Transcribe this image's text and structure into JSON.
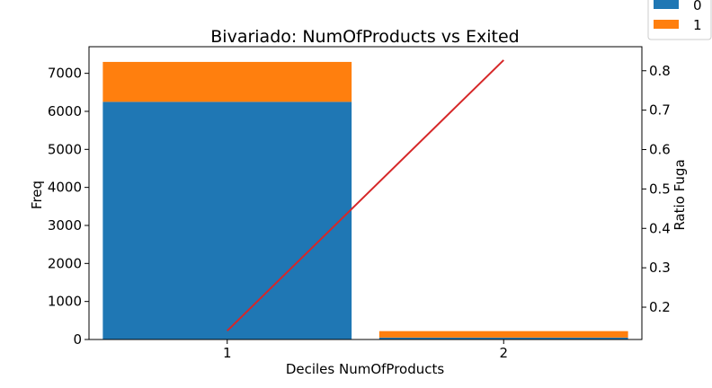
{
  "chart_data": {
    "type": "bar",
    "title": "Bivariado: NumOfProducts vs Exited",
    "xlabel": "Deciles NumOfProducts",
    "ylabel": "Freq",
    "y2label": "Ratio Fuga",
    "categories": [
      "1",
      "2"
    ],
    "stacked": true,
    "series": [
      {
        "name": "0",
        "values": [
          6250,
          50
        ],
        "color": "#1f77b4"
      },
      {
        "name": "1",
        "values": [
          1050,
          170
        ],
        "color": "#ff7f0e"
      }
    ],
    "line": {
      "values": [
        0.14,
        0.827
      ],
      "color": "#d62728",
      "axis": "right"
    },
    "ylim": [
      0,
      7700
    ],
    "y2lim": [
      0.118,
      0.861
    ],
    "yticks": [
      0,
      1000,
      2000,
      3000,
      4000,
      5000,
      6000,
      7000
    ],
    "y2ticks": [
      0.2,
      0.3,
      0.4,
      0.5,
      0.6,
      0.7,
      0.8
    ],
    "grid": false,
    "legend": "top-right"
  }
}
